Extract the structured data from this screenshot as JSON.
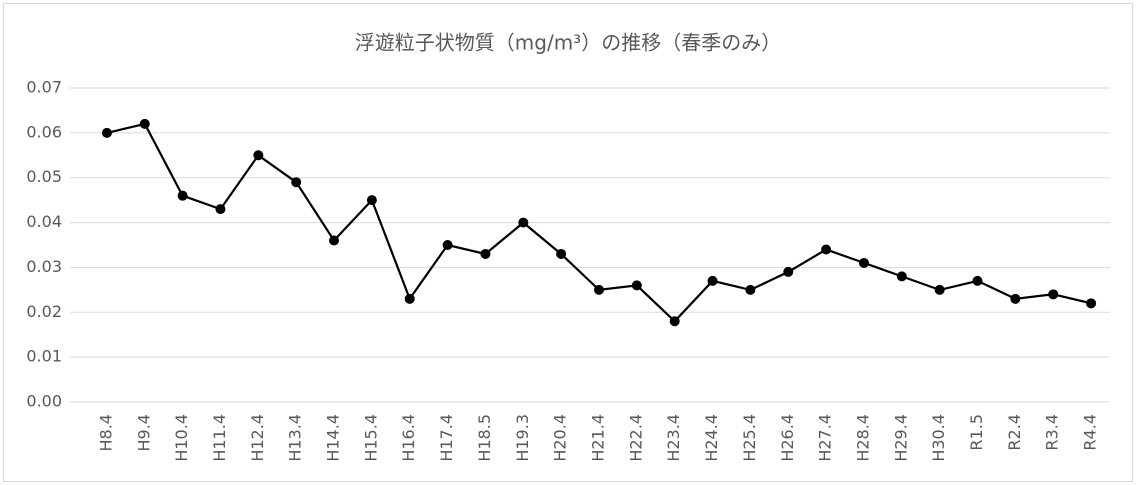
{
  "chart_data": {
    "type": "line",
    "title": "浮遊粒子状物質（mg/m³）の推移（春季のみ）",
    "categories": [
      "H8.4",
      "H9.4",
      "H10.4",
      "H11.4",
      "H12.4",
      "H13.4",
      "H14.4",
      "H15.4",
      "H16.4",
      "H17.4",
      "H18.5",
      "H19.3",
      "H20.4",
      "H21.4",
      "H22.4",
      "H23.4",
      "H24.4",
      "H25.4",
      "H26.4",
      "H27.4",
      "H28.4",
      "H29.4",
      "H30.4",
      "R1.5",
      "R2.4",
      "R3.4",
      "R4.4"
    ],
    "values": [
      0.06,
      0.062,
      0.046,
      0.043,
      0.055,
      0.049,
      0.036,
      0.045,
      0.023,
      0.035,
      0.033,
      0.04,
      0.033,
      0.025,
      0.026,
      0.018,
      0.027,
      0.025,
      0.029,
      0.034,
      0.031,
      0.028,
      0.025,
      0.027,
      0.023,
      0.024,
      0.022
    ],
    "color": "#000000",
    "ylim": [
      0,
      0.07
    ],
    "yticks": [
      {
        "value": 0,
        "label": "0.00"
      },
      0.01,
      0.02,
      0.03,
      0.04,
      0.05,
      0.06,
      0.07
    ],
    "grid": true
  }
}
